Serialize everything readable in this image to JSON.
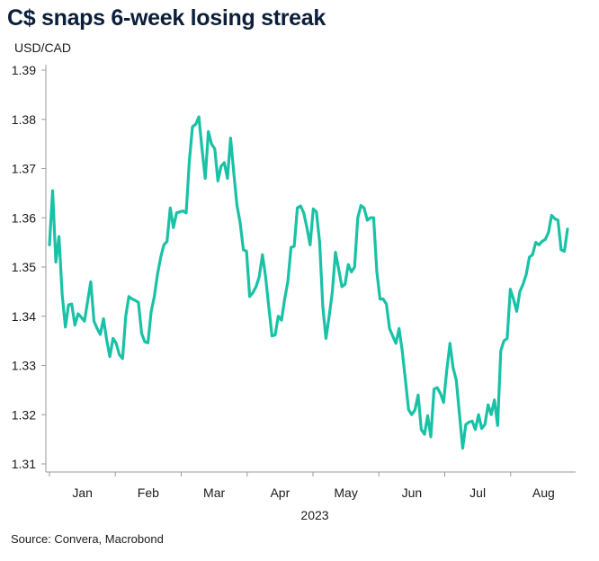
{
  "title": "C$ snaps 6-week losing streak",
  "source": "Source: Convera, Macrobond",
  "chart_data": {
    "type": "line",
    "title": "C$ snaps 6-week losing streak",
    "ylabel": "USD/CAD",
    "xlabel": "2023",
    "ylim": [
      1.31,
      1.39
    ],
    "y_ticks": [
      "1.31",
      "1.32",
      "1.33",
      "1.34",
      "1.35",
      "1.36",
      "1.37",
      "1.38",
      "1.39"
    ],
    "y_tick_values": [
      1.31,
      1.32,
      1.33,
      1.34,
      1.35,
      1.36,
      1.37,
      1.38,
      1.39
    ],
    "x_ticks": [
      "Jan",
      "Feb",
      "Mar",
      "Apr",
      "May",
      "Jun",
      "Jul",
      "Aug"
    ],
    "line_color": "#19c2a6",
    "grid": false,
    "series": [
      {
        "values": [
          1.3545,
          1.3655,
          1.351,
          1.3562,
          1.3445,
          1.3378,
          1.3423,
          1.3425,
          1.3382,
          1.3405,
          1.3398,
          1.339,
          1.343,
          1.347,
          1.339,
          1.3375,
          1.3363,
          1.3395,
          1.3352,
          1.3318,
          1.3355,
          1.3345,
          1.3322,
          1.3314,
          1.34,
          1.344,
          1.3435,
          1.3432,
          1.3428,
          1.3365,
          1.3348,
          1.3346,
          1.341,
          1.344,
          1.3485,
          1.352,
          1.3545,
          1.3552,
          1.362,
          1.358,
          1.361,
          1.3612,
          1.3614,
          1.361,
          1.3715,
          1.3785,
          1.379,
          1.3805,
          1.374,
          1.368,
          1.3775,
          1.375,
          1.374,
          1.3675,
          1.3705,
          1.3712,
          1.368,
          1.3762,
          1.369,
          1.3625,
          1.359,
          1.3535,
          1.3532,
          1.344,
          1.3448,
          1.346,
          1.348,
          1.3525,
          1.348,
          1.342,
          1.336,
          1.3362,
          1.34,
          1.3392,
          1.3435,
          1.347,
          1.354,
          1.3542,
          1.362,
          1.3624,
          1.361,
          1.358,
          1.3545,
          1.3618,
          1.3612,
          1.355,
          1.342,
          1.3355,
          1.34,
          1.345,
          1.353,
          1.3495,
          1.346,
          1.3465,
          1.3505,
          1.349,
          1.35,
          1.36,
          1.3625,
          1.362,
          1.3595,
          1.36,
          1.36,
          1.349,
          1.3435,
          1.3435,
          1.3425,
          1.3375,
          1.336,
          1.3345,
          1.3375,
          1.333,
          1.327,
          1.321,
          1.32,
          1.321,
          1.324,
          1.317,
          1.316,
          1.3198,
          1.3155,
          1.3252,
          1.3255,
          1.3243,
          1.3225,
          1.329,
          1.3345,
          1.3295,
          1.327,
          1.32,
          1.3132,
          1.318,
          1.3185,
          1.3187,
          1.317,
          1.32,
          1.3172,
          1.318,
          1.322,
          1.32,
          1.323,
          1.3178,
          1.333,
          1.335,
          1.3355,
          1.3455,
          1.3435,
          1.341,
          1.345,
          1.3465,
          1.3485,
          1.352,
          1.3525,
          1.355,
          1.3545,
          1.3552,
          1.3556,
          1.357,
          1.3605,
          1.3598,
          1.3595,
          1.3535,
          1.3532,
          1.3577
        ]
      }
    ]
  }
}
